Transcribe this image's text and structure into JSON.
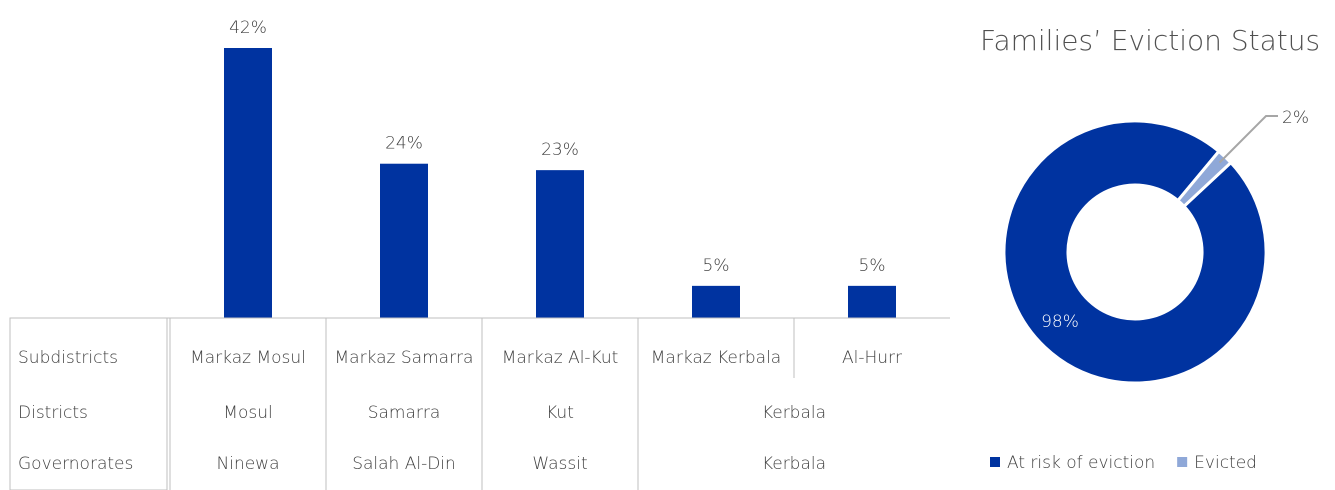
{
  "chart_data": [
    {
      "type": "bar",
      "categories": [
        "Markaz Mosul",
        "Markaz Samarra",
        "Markaz Al-Kut",
        "Markaz Kerbala",
        "Al-Hurr"
      ],
      "category_level_names": [
        "Subdistricts",
        "Districts",
        "Governorates"
      ],
      "districts": [
        "Mosul",
        "Samarra",
        "Kut",
        "Kerbala",
        null
      ],
      "governorates": [
        "Ninewa",
        "Salah Al-Din",
        "Wassit",
        "Kerbala",
        null
      ],
      "values": [
        42,
        24,
        23,
        5,
        5
      ],
      "value_labels": [
        "42%",
        "24%",
        "23%",
        "5%",
        "5%"
      ],
      "color": "#0033a0"
    },
    {
      "type": "donut",
      "title": "Families’ Eviction Status",
      "categories": [
        "At risk of eviction",
        "Evicted"
      ],
      "values": [
        98,
        2
      ],
      "value_labels": [
        "98%",
        "2%"
      ],
      "colors": [
        "#0033a0",
        "#8fa8d8"
      ],
      "legend": "bottom"
    }
  ]
}
